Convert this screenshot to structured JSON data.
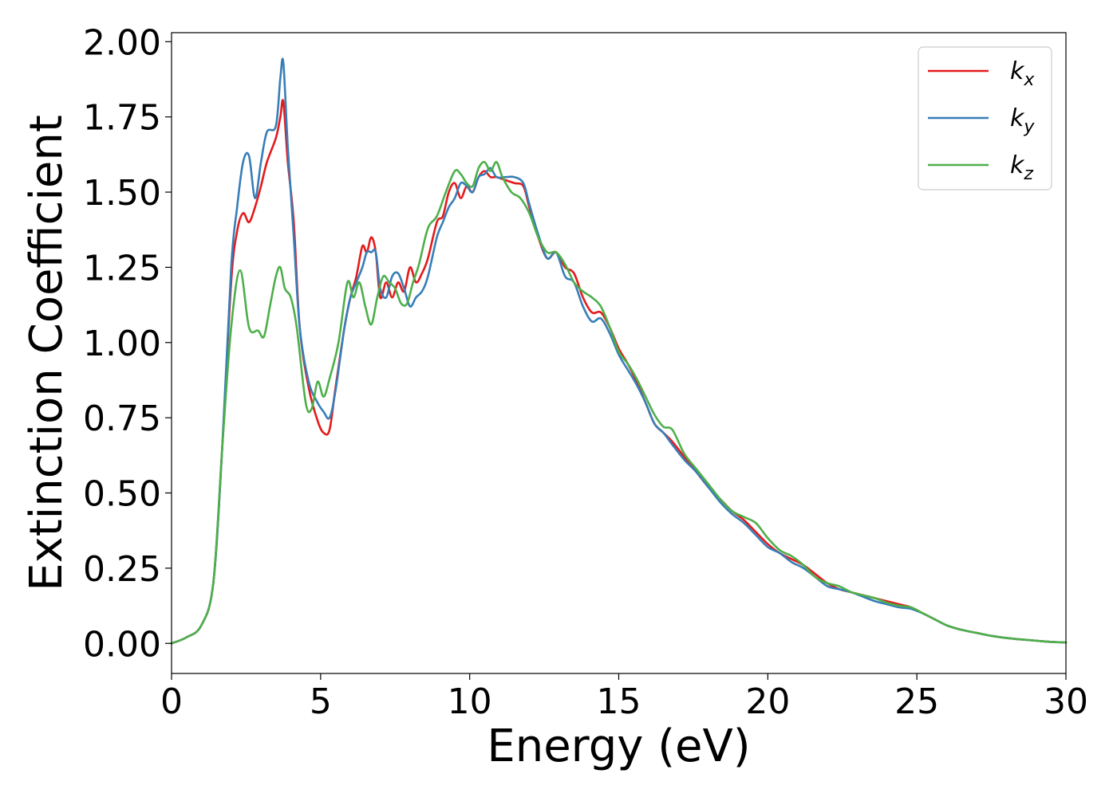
{
  "chart_data": {
    "type": "line",
    "title": "",
    "xlabel": "Energy (eV)",
    "ylabel": "Extinction Coefficient",
    "xlim": [
      0,
      30
    ],
    "ylim": [
      -0.1,
      2.03
    ],
    "xticks": [
      "0",
      "5",
      "10",
      "15",
      "20",
      "25",
      "30"
    ],
    "yticks": [
      "0.00",
      "0.25",
      "0.50",
      "0.75",
      "1.00",
      "1.25",
      "1.50",
      "1.75",
      "2.00"
    ],
    "grid": false,
    "legend_position": "top-right",
    "series": [
      {
        "name_main": "k",
        "name_sub": "x",
        "color": "#e41a1c",
        "x": [
          0,
          0.5,
          1.0,
          1.4,
          1.7,
          2.0,
          2.2,
          2.4,
          2.6,
          2.8,
          3.0,
          3.2,
          3.5,
          3.65,
          3.75,
          3.9,
          4.1,
          4.3,
          4.6,
          4.9,
          5.1,
          5.3,
          5.5,
          5.8,
          6.0,
          6.2,
          6.4,
          6.55,
          6.7,
          6.85,
          7.0,
          7.2,
          7.4,
          7.6,
          7.8,
          8.0,
          8.2,
          8.4,
          8.6,
          8.9,
          9.1,
          9.3,
          9.5,
          9.7,
          9.9,
          10.1,
          10.3,
          10.5,
          10.7,
          10.9,
          11.2,
          11.5,
          11.8,
          12.0,
          12.3,
          12.6,
          12.9,
          13.2,
          13.5,
          13.8,
          14.1,
          14.4,
          14.7,
          15.0,
          15.3,
          15.6,
          15.9,
          16.2,
          16.5,
          16.8,
          17.2,
          17.6,
          18.0,
          18.4,
          18.8,
          19.2,
          19.6,
          20.0,
          20.4,
          20.8,
          21.2,
          21.6,
          22.0,
          22.4,
          22.8,
          23.2,
          23.6,
          24.0,
          24.4,
          24.8,
          25.2,
          25.6,
          26.0,
          26.5,
          27.0,
          27.5,
          28.0,
          28.5,
          29.0,
          29.5,
          30.0
        ],
        "y": [
          0.0,
          0.02,
          0.06,
          0.2,
          0.65,
          1.2,
          1.37,
          1.43,
          1.4,
          1.45,
          1.52,
          1.6,
          1.68,
          1.75,
          1.8,
          1.6,
          1.4,
          1.05,
          0.85,
          0.74,
          0.7,
          0.71,
          0.85,
          1.05,
          1.15,
          1.22,
          1.32,
          1.3,
          1.35,
          1.3,
          1.15,
          1.2,
          1.15,
          1.2,
          1.17,
          1.25,
          1.2,
          1.23,
          1.28,
          1.4,
          1.42,
          1.5,
          1.53,
          1.48,
          1.52,
          1.5,
          1.55,
          1.57,
          1.55,
          1.55,
          1.54,
          1.53,
          1.52,
          1.45,
          1.35,
          1.28,
          1.3,
          1.25,
          1.23,
          1.15,
          1.1,
          1.1,
          1.05,
          0.98,
          0.93,
          0.87,
          0.8,
          0.73,
          0.7,
          0.67,
          0.62,
          0.57,
          0.52,
          0.48,
          0.44,
          0.41,
          0.37,
          0.33,
          0.3,
          0.28,
          0.26,
          0.23,
          0.2,
          0.18,
          0.17,
          0.16,
          0.15,
          0.14,
          0.13,
          0.12,
          0.1,
          0.08,
          0.06,
          0.045,
          0.035,
          0.025,
          0.018,
          0.013,
          0.009,
          0.005,
          0.003
        ]
      },
      {
        "name_main": "k",
        "name_sub": "y",
        "color": "#377eb8",
        "x": [
          0,
          0.5,
          1.0,
          1.4,
          1.7,
          2.0,
          2.2,
          2.4,
          2.6,
          2.8,
          3.0,
          3.2,
          3.5,
          3.65,
          3.75,
          3.9,
          4.1,
          4.3,
          4.6,
          4.9,
          5.1,
          5.3,
          5.5,
          5.8,
          6.0,
          6.2,
          6.4,
          6.55,
          6.7,
          6.85,
          7.0,
          7.2,
          7.4,
          7.6,
          7.8,
          8.0,
          8.2,
          8.4,
          8.6,
          8.9,
          9.1,
          9.3,
          9.5,
          9.7,
          9.9,
          10.1,
          10.3,
          10.5,
          10.7,
          10.9,
          11.2,
          11.5,
          11.8,
          12.0,
          12.3,
          12.6,
          12.9,
          13.2,
          13.5,
          13.8,
          14.1,
          14.4,
          14.7,
          15.0,
          15.3,
          15.6,
          15.9,
          16.2,
          16.5,
          16.8,
          17.2,
          17.6,
          18.0,
          18.4,
          18.8,
          19.2,
          19.6,
          20.0,
          20.4,
          20.8,
          21.2,
          21.6,
          22.0,
          22.4,
          22.8,
          23.2,
          23.6,
          24.0,
          24.4,
          24.8,
          25.2,
          25.6,
          26.0,
          26.5,
          27.0,
          27.5,
          28.0,
          28.5,
          29.0,
          29.5,
          30.0
        ],
        "y": [
          0.0,
          0.02,
          0.06,
          0.2,
          0.65,
          1.25,
          1.45,
          1.6,
          1.62,
          1.48,
          1.6,
          1.7,
          1.72,
          1.88,
          1.93,
          1.65,
          1.35,
          1.05,
          0.87,
          0.8,
          0.77,
          0.75,
          0.84,
          1.05,
          1.15,
          1.2,
          1.25,
          1.3,
          1.3,
          1.3,
          1.18,
          1.15,
          1.22,
          1.23,
          1.18,
          1.12,
          1.15,
          1.17,
          1.22,
          1.35,
          1.4,
          1.45,
          1.48,
          1.53,
          1.52,
          1.5,
          1.55,
          1.56,
          1.58,
          1.55,
          1.55,
          1.55,
          1.53,
          1.46,
          1.36,
          1.28,
          1.3,
          1.22,
          1.2,
          1.12,
          1.07,
          1.08,
          1.03,
          0.96,
          0.91,
          0.86,
          0.8,
          0.73,
          0.7,
          0.66,
          0.61,
          0.57,
          0.52,
          0.47,
          0.43,
          0.4,
          0.36,
          0.32,
          0.3,
          0.27,
          0.25,
          0.22,
          0.19,
          0.18,
          0.17,
          0.155,
          0.14,
          0.13,
          0.12,
          0.115,
          0.1,
          0.08,
          0.06,
          0.045,
          0.035,
          0.025,
          0.018,
          0.013,
          0.009,
          0.005,
          0.003
        ]
      },
      {
        "name_main": "k",
        "name_sub": "z",
        "color": "#4daf4a",
        "x": [
          0,
          0.5,
          1.0,
          1.4,
          1.7,
          2.0,
          2.3,
          2.6,
          2.9,
          3.1,
          3.3,
          3.5,
          3.65,
          3.8,
          4.0,
          4.2,
          4.5,
          4.7,
          4.9,
          5.1,
          5.3,
          5.6,
          5.9,
          6.1,
          6.3,
          6.5,
          6.7,
          6.9,
          7.1,
          7.3,
          7.5,
          7.7,
          7.9,
          8.1,
          8.3,
          8.6,
          8.9,
          9.2,
          9.5,
          9.7,
          9.9,
          10.1,
          10.3,
          10.5,
          10.7,
          10.9,
          11.1,
          11.4,
          11.7,
          12.0,
          12.3,
          12.6,
          12.9,
          13.2,
          13.5,
          13.8,
          14.1,
          14.4,
          14.7,
          15.0,
          15.3,
          15.6,
          15.9,
          16.2,
          16.5,
          16.8,
          17.2,
          17.6,
          18.0,
          18.4,
          18.8,
          19.2,
          19.6,
          20.0,
          20.4,
          20.8,
          21.2,
          21.6,
          22.0,
          22.4,
          22.8,
          23.2,
          23.6,
          24.0,
          24.4,
          24.8,
          25.2,
          25.6,
          26.0,
          26.5,
          27.0,
          27.5,
          28.0,
          28.5,
          29.0,
          29.5,
          30.0
        ],
        "y": [
          0.0,
          0.02,
          0.06,
          0.2,
          0.65,
          1.05,
          1.24,
          1.05,
          1.04,
          1.02,
          1.12,
          1.22,
          1.25,
          1.18,
          1.15,
          1.05,
          0.8,
          0.78,
          0.87,
          0.82,
          0.88,
          1.0,
          1.2,
          1.15,
          1.2,
          1.12,
          1.06,
          1.15,
          1.22,
          1.2,
          1.18,
          1.13,
          1.13,
          1.2,
          1.26,
          1.38,
          1.42,
          1.5,
          1.57,
          1.56,
          1.53,
          1.52,
          1.58,
          1.6,
          1.57,
          1.6,
          1.55,
          1.5,
          1.48,
          1.43,
          1.35,
          1.3,
          1.3,
          1.26,
          1.2,
          1.17,
          1.15,
          1.12,
          1.05,
          0.97,
          0.93,
          0.88,
          0.82,
          0.76,
          0.72,
          0.71,
          0.63,
          0.58,
          0.53,
          0.48,
          0.44,
          0.42,
          0.4,
          0.35,
          0.31,
          0.29,
          0.26,
          0.22,
          0.2,
          0.19,
          0.17,
          0.16,
          0.15,
          0.135,
          0.125,
          0.12,
          0.1,
          0.08,
          0.06,
          0.045,
          0.035,
          0.025,
          0.018,
          0.013,
          0.009,
          0.005,
          0.003
        ]
      }
    ]
  }
}
